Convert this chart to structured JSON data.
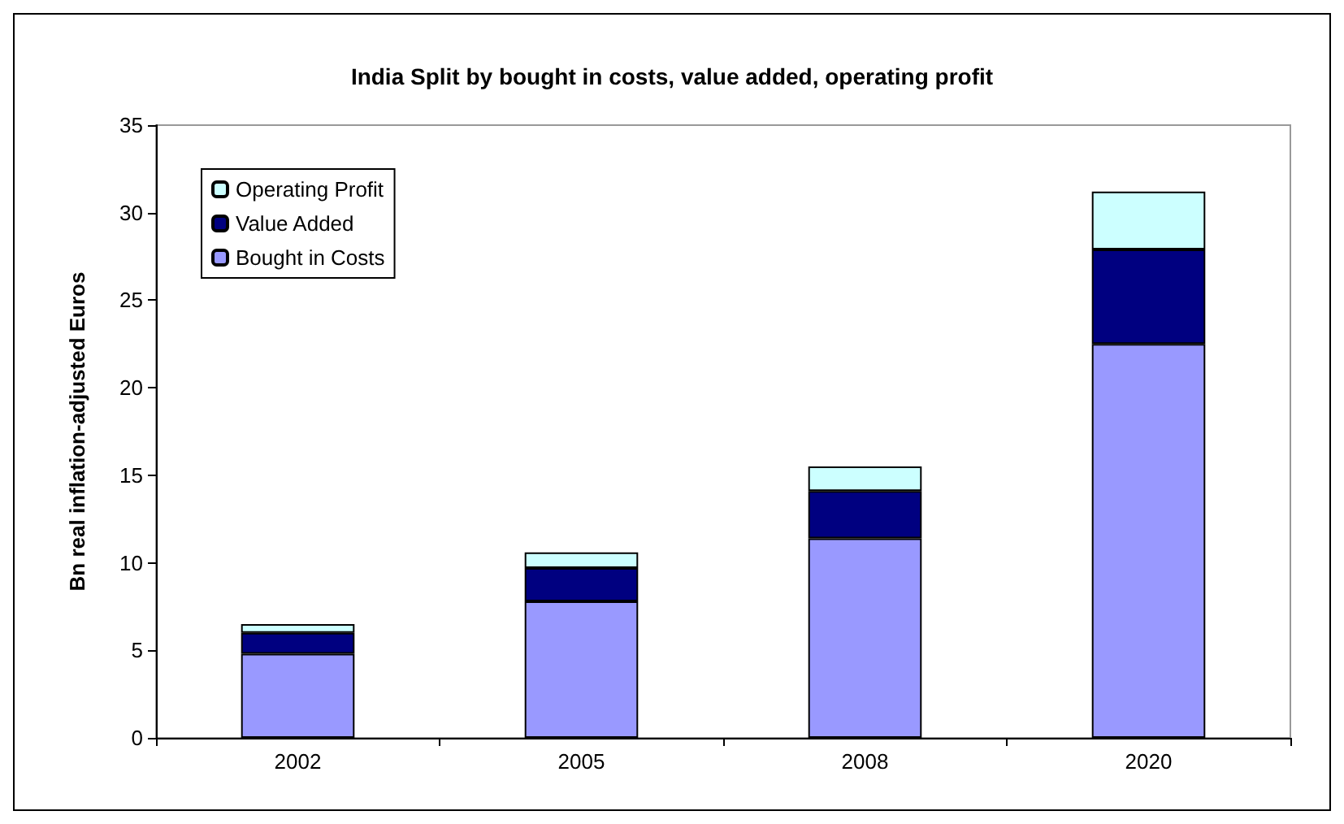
{
  "chart_data": {
    "type": "bar",
    "title": "India Split by bought in costs, value added, operating profit",
    "ylabel": "Bn real inflation-adjusted Euros",
    "categories": [
      "2002",
      "2005",
      "2008",
      "2020"
    ],
    "stacked": true,
    "series": [
      {
        "name": "Bought in Costs",
        "color": "#9999ff",
        "values": [
          4.8,
          7.8,
          11.4,
          22.5
        ]
      },
      {
        "name": "Value Added",
        "color": "#000080",
        "values": [
          1.2,
          1.9,
          2.7,
          5.4
        ]
      },
      {
        "name": "Operating Profit",
        "color": "#ccffff",
        "values": [
          0.5,
          0.9,
          1.4,
          3.3
        ]
      }
    ],
    "ylim": [
      0,
      35
    ],
    "yticks": [
      0,
      5,
      10,
      15,
      20,
      25,
      30,
      35
    ],
    "grid": false,
    "legend": "top left"
  }
}
